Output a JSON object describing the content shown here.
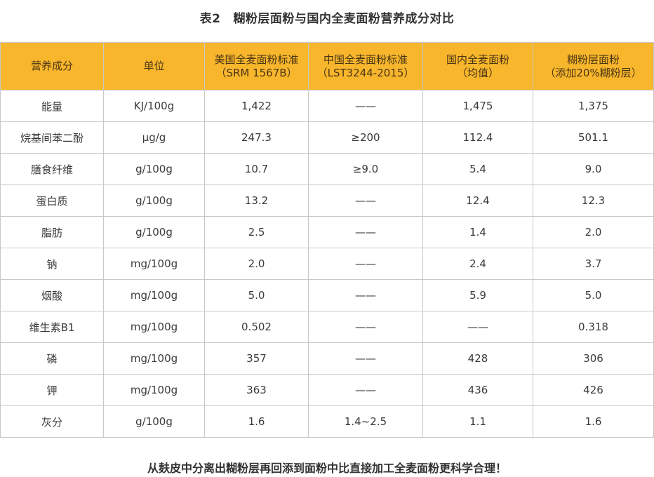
{
  "title": {
    "label": "表2",
    "text": "糊粉层面粉与国内全麦面粉营养成分对比"
  },
  "table": {
    "headers": [
      {
        "line1": "营养成分",
        "line2": ""
      },
      {
        "line1": "单位",
        "line2": ""
      },
      {
        "line1": "美国全麦面粉标准",
        "line2": "（SRM 1567B）"
      },
      {
        "line1": "中国全麦面粉标准",
        "line2": "（LST3244-2015）"
      },
      {
        "line1": "国内全麦面粉",
        "line2": "（均值）"
      },
      {
        "line1": "糊粉层面粉",
        "line2": "（添加20%糊粉层）"
      }
    ],
    "rows": [
      [
        "能量",
        "KJ/100g",
        "1,422",
        "——",
        "1,475",
        "1,375"
      ],
      [
        "烷基间苯二酚",
        "μg/g",
        "247.3",
        "≥200",
        "112.4",
        "501.1"
      ],
      [
        "膳食纤维",
        "g/100g",
        "10.7",
        "≥9.0",
        "5.4",
        "9.0"
      ],
      [
        "蛋白质",
        "g/100g",
        "13.2",
        "——",
        "12.4",
        "12.3"
      ],
      [
        "脂肪",
        "g/100g",
        "2.5",
        "——",
        "1.4",
        "2.0"
      ],
      [
        "钠",
        "mg/100g",
        "2.0",
        "——",
        "2.4",
        "3.7"
      ],
      [
        "烟酸",
        "mg/100g",
        "5.0",
        "——",
        "5.9",
        "5.0"
      ],
      [
        "维生素B1",
        "mg/100g",
        "0.502",
        "——",
        "——",
        "0.318"
      ],
      [
        "磷",
        "mg/100g",
        "357",
        "——",
        "428",
        "306"
      ],
      [
        "钾",
        "mg/100g",
        "363",
        "——",
        "436",
        "426"
      ],
      [
        "灰分",
        "g/100g",
        "1.6",
        "1.4~2.5",
        "1.1",
        "1.6"
      ]
    ]
  },
  "footer": "从麸皮中分离出糊粉层再回添到面粉中比直接加工全麦面粉更科学合理！",
  "colors": {
    "header_bg": "#f8b62c",
    "border": "#c8c8c8"
  }
}
